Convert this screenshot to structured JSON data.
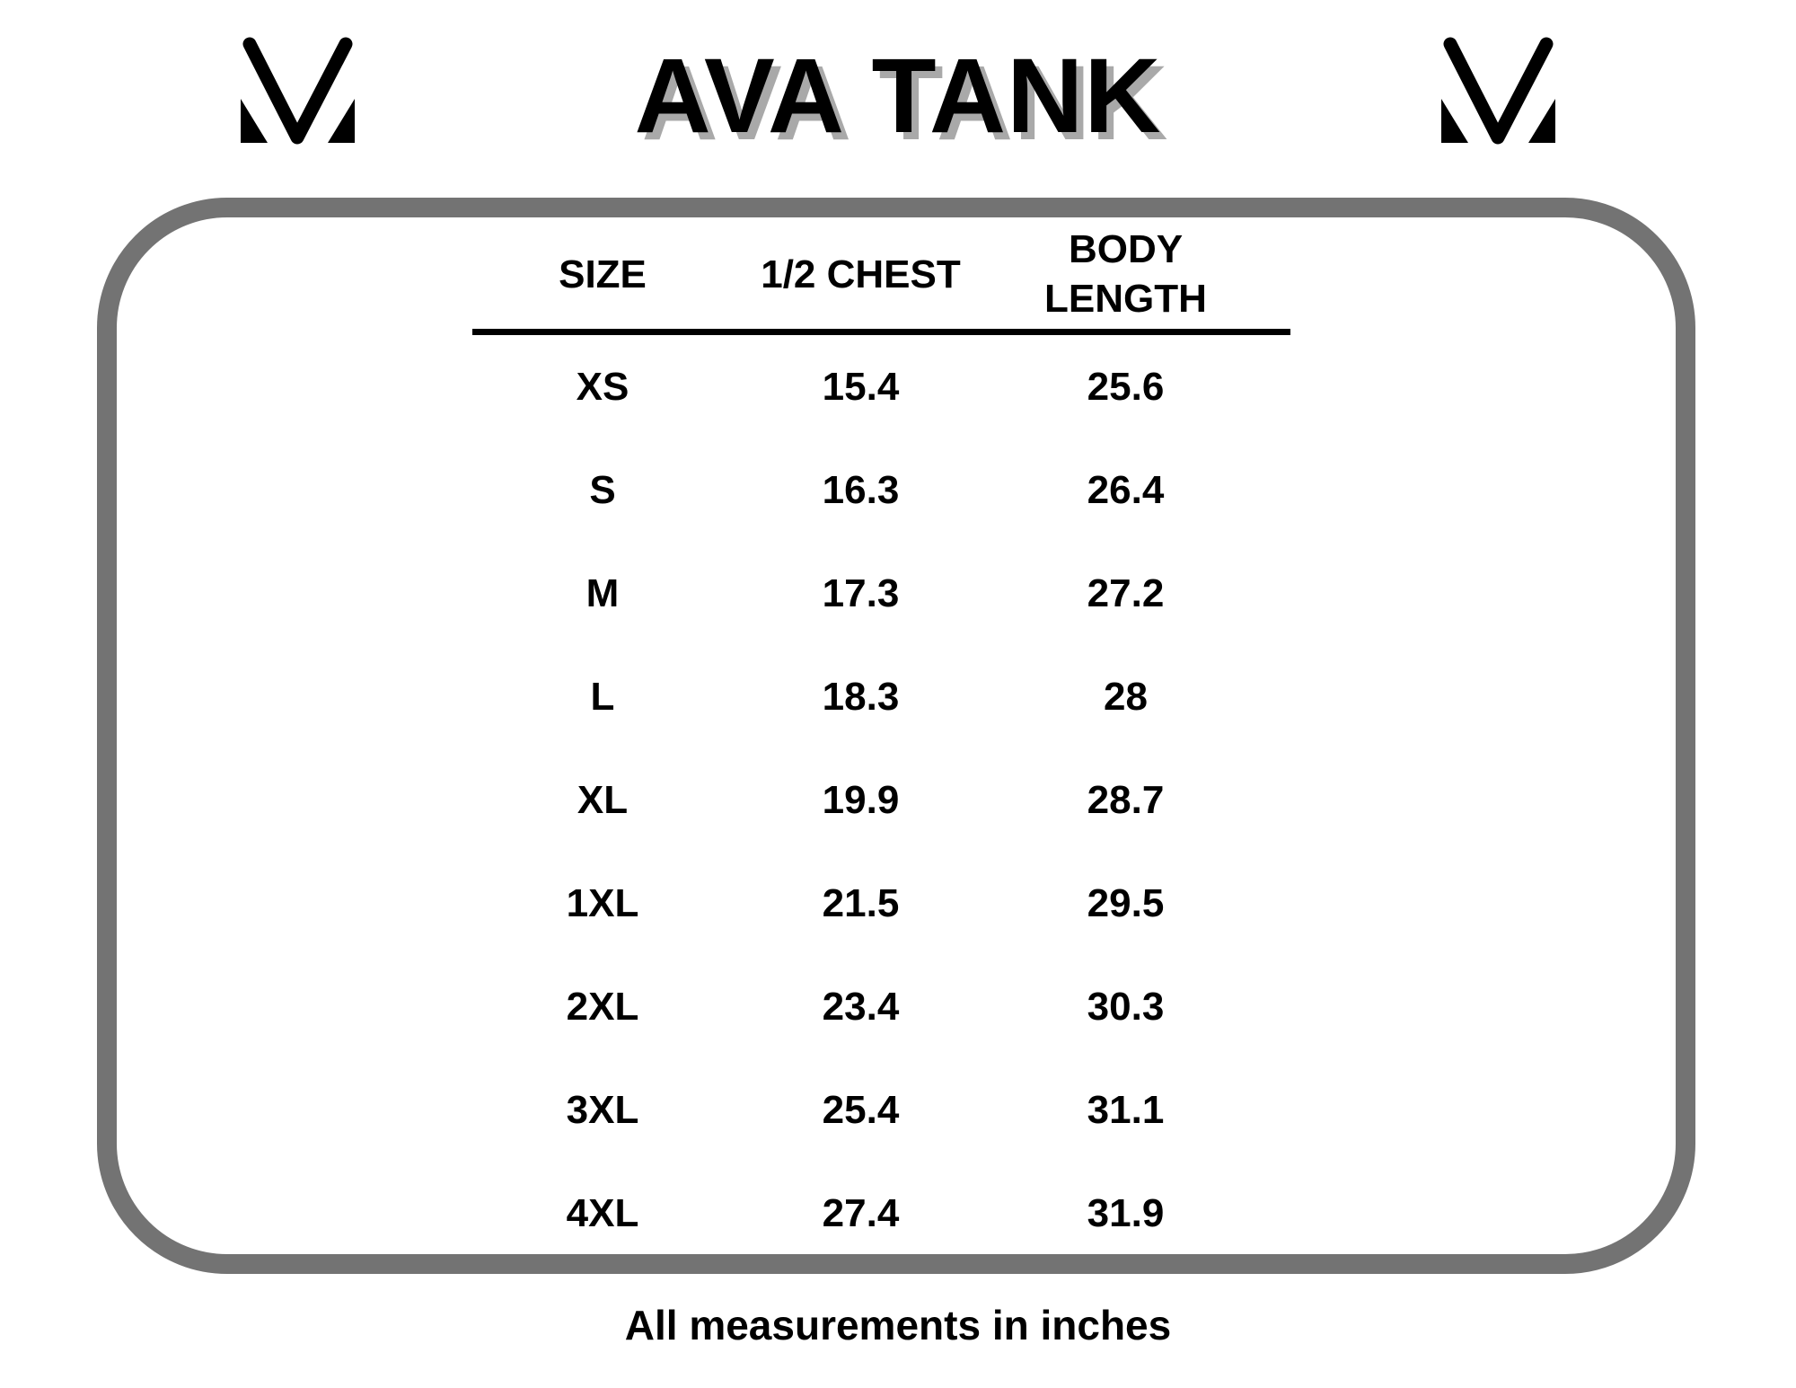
{
  "page": {
    "title": "AVA TANK",
    "footer_note": "All measurements in inches"
  },
  "branding": {
    "logo_left": "mv-monogram",
    "logo_right": "mv-monogram"
  },
  "colors": {
    "text": "#000000",
    "title_shadow": "#a9a9a9",
    "frame_border": "#737373",
    "background": "#ffffff"
  },
  "chart_data": {
    "type": "table",
    "title": "AVA TANK",
    "columns": [
      "SIZE",
      "1/2 CHEST",
      "BODY LENGTH"
    ],
    "rows": [
      {
        "size": "XS",
        "half_chest": "15.4",
        "body_length": "25.6"
      },
      {
        "size": "S",
        "half_chest": "16.3",
        "body_length": "26.4"
      },
      {
        "size": "M",
        "half_chest": "17.3",
        "body_length": "27.2"
      },
      {
        "size": "L",
        "half_chest": "18.3",
        "body_length": "28"
      },
      {
        "size": "XL",
        "half_chest": "19.9",
        "body_length": "28.7"
      },
      {
        "size": "1XL",
        "half_chest": "21.5",
        "body_length": "29.5"
      },
      {
        "size": "2XL",
        "half_chest": "23.4",
        "body_length": "30.3"
      },
      {
        "size": "3XL",
        "half_chest": "25.4",
        "body_length": "31.1"
      },
      {
        "size": "4XL",
        "half_chest": "27.4",
        "body_length": "31.9"
      }
    ],
    "units_note": "All measurements in inches",
    "layout": {
      "grid": false,
      "header_rule": true
    }
  }
}
